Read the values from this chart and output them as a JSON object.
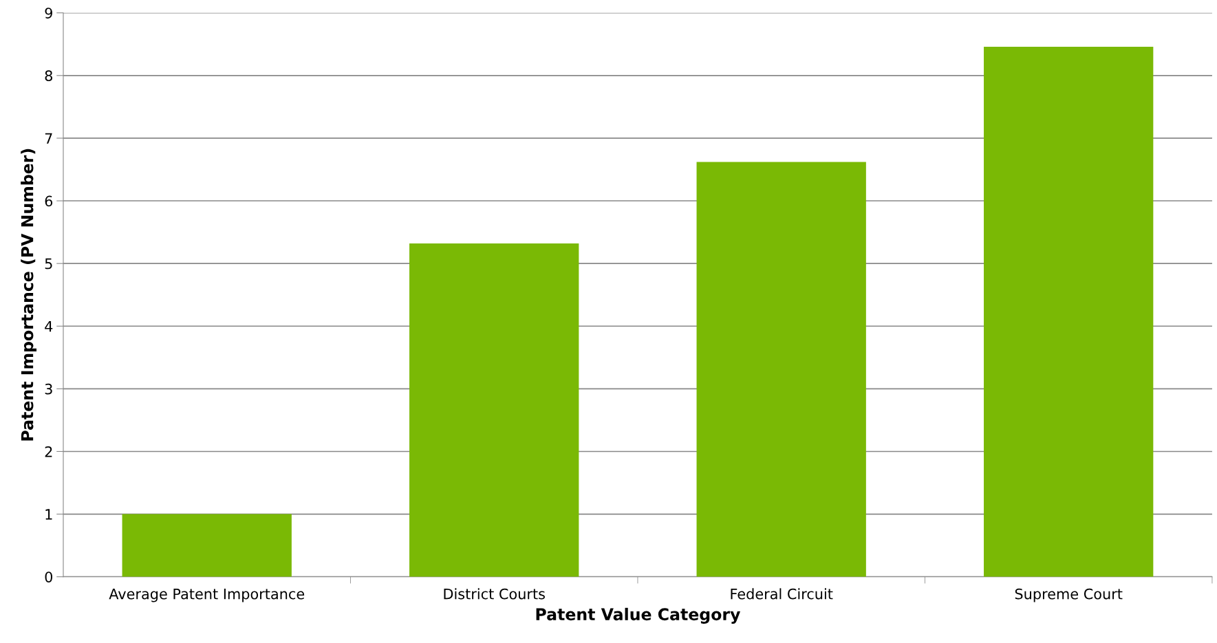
{
  "chart_data": {
    "type": "bar",
    "xlabel": "Patent Value Category",
    "ylabel": "Patent Importance (PV Number)",
    "categories": [
      "Average Patent Importance",
      "District Courts",
      "Federal Circuit",
      "Supreme Court"
    ],
    "values": [
      1.0,
      5.32,
      6.62,
      8.46
    ],
    "color": "#7ab905",
    "ylim": [
      0,
      9
    ],
    "yticks": [
      0,
      1,
      2,
      3,
      4,
      5,
      6,
      7,
      8,
      9
    ],
    "grid": "y",
    "legend": false
  }
}
